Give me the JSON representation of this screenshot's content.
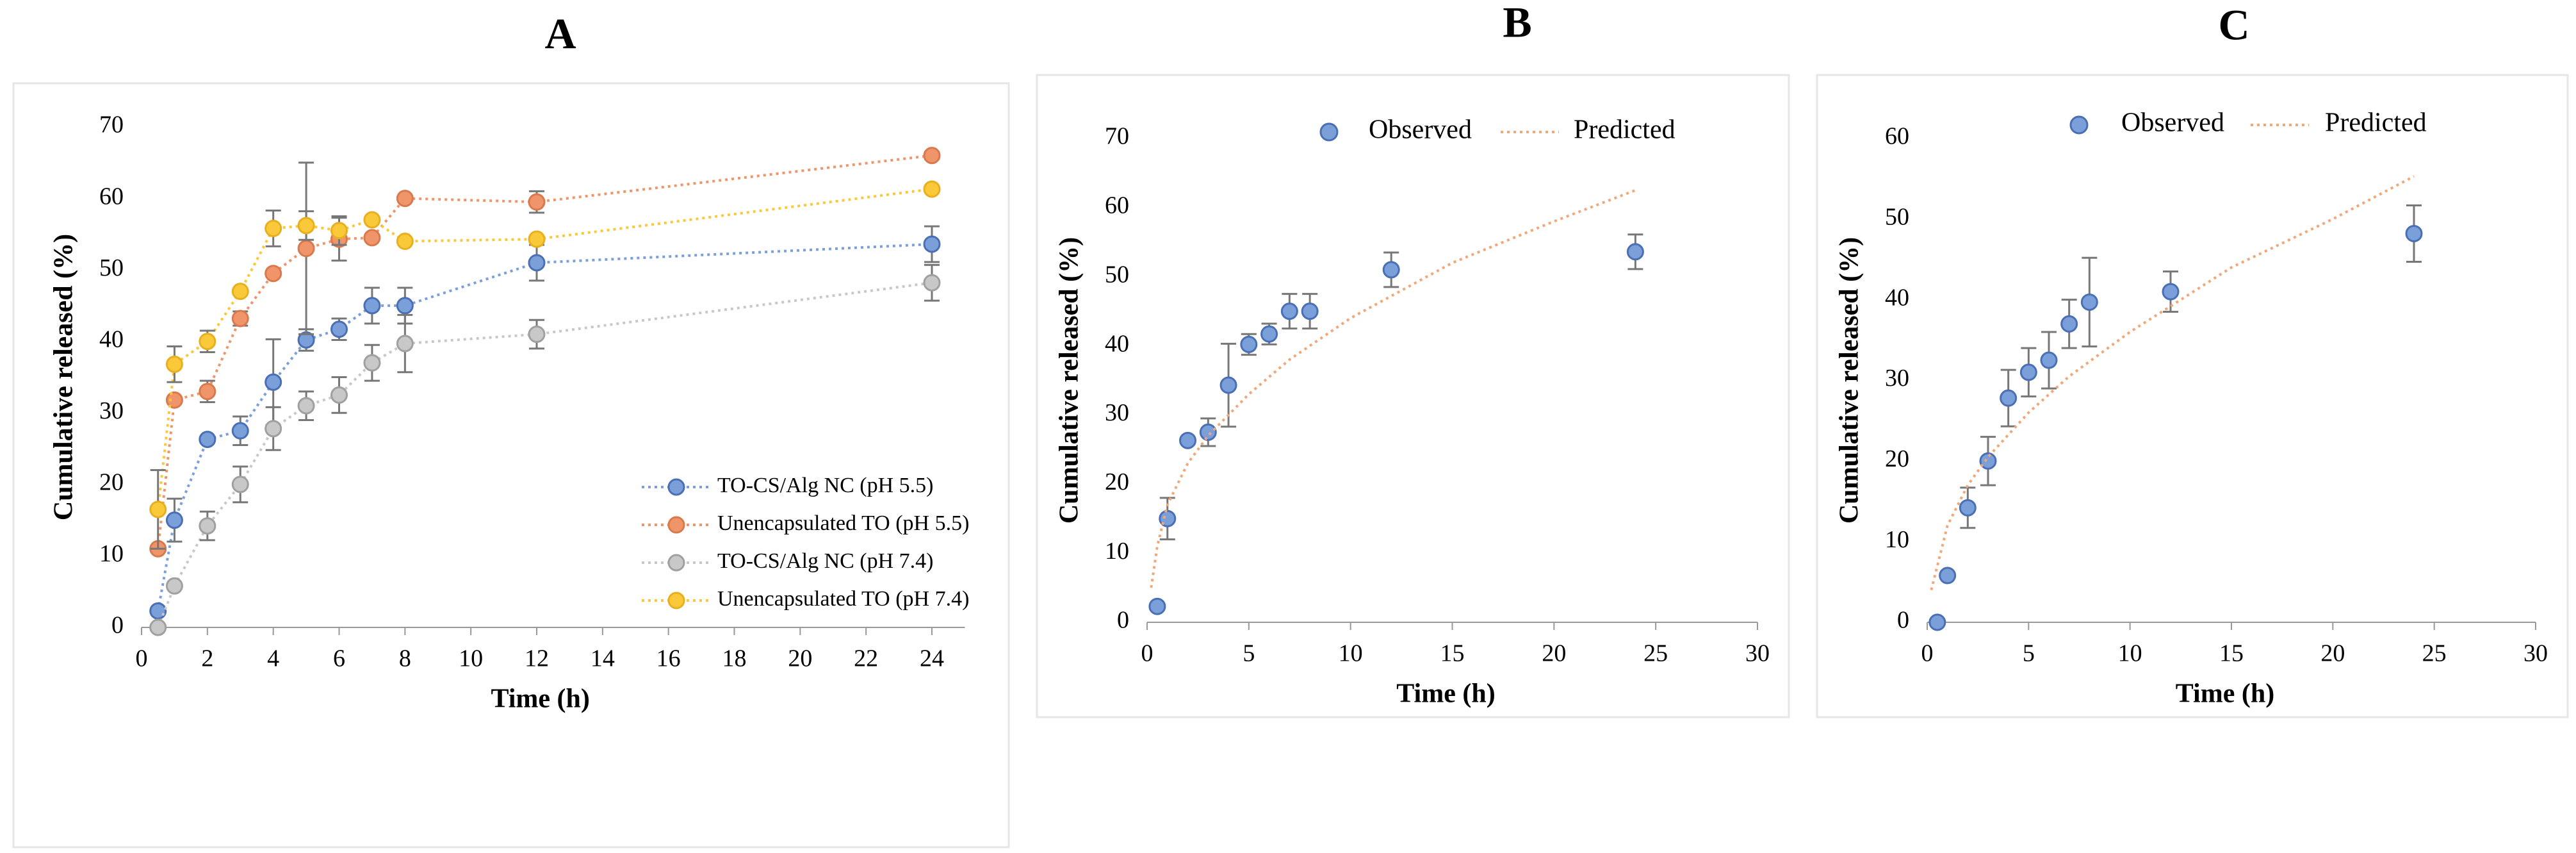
{
  "chart_data": [
    {
      "type": "line",
      "title": "A",
      "x_label": "Time (h)",
      "y_label": "Cumulative released (%)",
      "x": [
        0.5,
        1,
        2,
        3,
        4,
        5,
        6,
        7,
        8,
        12,
        24
      ],
      "xlim": [
        0,
        25
      ],
      "xticks": [
        0,
        2,
        4,
        6,
        8,
        10,
        12,
        14,
        16,
        18,
        20,
        22,
        24
      ],
      "ylim": [
        0,
        70
      ],
      "yticks": [
        0,
        10,
        20,
        30,
        40,
        50,
        60,
        70
      ],
      "legend": "lower right",
      "series": [
        {
          "name": "TO-CS/Alg NC (pH 5.5)",
          "color": "#7a9fd9",
          "edge": "#4a6fb5",
          "line_style": "dotted",
          "marker": true,
          "values": [
            2.3,
            15,
            26.3,
            27.5,
            34.3,
            40.2,
            41.7,
            45,
            45,
            51,
            53.6
          ],
          "errors": [
            0,
            3,
            0,
            2,
            6,
            1.5,
            1.5,
            2.5,
            2.5,
            2.5,
            2.5
          ]
        },
        {
          "name": "Unencapsulated TO (pH 5.5)",
          "color": "#f0956a",
          "edge": "#d97a4e",
          "line_style": "dotted",
          "marker": true,
          "values": [
            11,
            31.8,
            33,
            43.2,
            49.5,
            53,
            54.3,
            54.5,
            60,
            59.5,
            66
          ],
          "errors": [
            0,
            0,
            1.5,
            1,
            0,
            12,
            3,
            0,
            0,
            1.5,
            0.5
          ]
        },
        {
          "name": "TO-CS/Alg NC (pH 7.4)",
          "color": "#c8c8c8",
          "edge": "#a0a0a0",
          "line_style": "dotted",
          "marker": true,
          "values": [
            0,
            5.8,
            14.2,
            20,
            27.8,
            31,
            32.5,
            37,
            39.7,
            41,
            48.2
          ],
          "errors": [
            0,
            0,
            2,
            2.5,
            3,
            2,
            2.5,
            2.5,
            4,
            2,
            2.5
          ]
        },
        {
          "name": "Unencapsulated TO (pH 7.4)",
          "color": "#f9c93a",
          "edge": "#e8b020",
          "line_style": "dotted",
          "marker": true,
          "values": [
            16.5,
            36.8,
            40,
            47,
            55.8,
            56.2,
            55.5,
            57,
            54,
            54.3,
            61.3
          ],
          "errors": [
            5.5,
            2.5,
            1.5,
            0,
            2.5,
            2,
            2,
            0,
            0,
            0,
            0
          ]
        }
      ]
    },
    {
      "type": "line",
      "title": "B",
      "x_label": "Time (h)",
      "y_label": "Cumulative released (%)",
      "xlim": [
        0,
        30
      ],
      "xticks": [
        0,
        5,
        10,
        15,
        20,
        25,
        30
      ],
      "ylim": [
        0,
        70
      ],
      "yticks": [
        0,
        10,
        20,
        30,
        40,
        50,
        60,
        70
      ],
      "legend": "upper center",
      "series": [
        {
          "name": "Observed",
          "color": "#7a9fd9",
          "edge": "#4a6fb5",
          "marker": true,
          "line_style": "none",
          "x": [
            0.5,
            1,
            2,
            3,
            4,
            5,
            6,
            7,
            8,
            12,
            24
          ],
          "values": [
            2.3,
            15,
            26.3,
            27.5,
            34.3,
            40.2,
            41.7,
            45,
            45,
            51,
            53.6
          ],
          "errors": [
            0,
            3,
            0,
            2,
            6,
            1.5,
            1.5,
            2.5,
            2.5,
            2.5,
            2.5
          ]
        },
        {
          "name": "Predicted",
          "color": "#f0a77a",
          "marker": false,
          "line_style": "dotted",
          "x": [
            0.2,
            0.5,
            1,
            2,
            3,
            5,
            7,
            10,
            15,
            20,
            24
          ],
          "values": [
            5,
            11,
            17,
            23,
            27,
            33,
            38,
            44,
            52,
            58,
            62.5
          ]
        }
      ]
    },
    {
      "type": "line",
      "title": "C",
      "x_label": "Time (h)",
      "y_label": "Cumulative released (%)",
      "xlim": [
        0,
        30
      ],
      "xticks": [
        0,
        5,
        10,
        15,
        20,
        25,
        30
      ],
      "ylim": [
        0,
        60
      ],
      "yticks": [
        0,
        10,
        20,
        30,
        40,
        50,
        60
      ],
      "legend": "upper center",
      "series": [
        {
          "name": "Observed",
          "color": "#7a9fd9",
          "edge": "#4a6fb5",
          "marker": true,
          "line_style": "none",
          "x": [
            0.5,
            1,
            2,
            3,
            4,
            5,
            6,
            7,
            8,
            12,
            24
          ],
          "values": [
            0,
            5.8,
            14.2,
            20,
            27.8,
            31,
            32.5,
            37,
            39.7,
            41,
            48.2
          ],
          "errors": [
            0,
            0,
            2.5,
            3,
            3.5,
            3,
            3.5,
            3,
            5.5,
            2.5,
            3.5
          ]
        },
        {
          "name": "Predicted",
          "color": "#f0a77a",
          "marker": false,
          "line_style": "dotted",
          "x": [
            0.2,
            0.5,
            1,
            2,
            3,
            5,
            7,
            10,
            15,
            20,
            24
          ],
          "values": [
            4,
            7,
            12,
            17,
            20.5,
            26,
            30.5,
            36,
            44,
            50,
            55.3
          ]
        }
      ]
    }
  ]
}
